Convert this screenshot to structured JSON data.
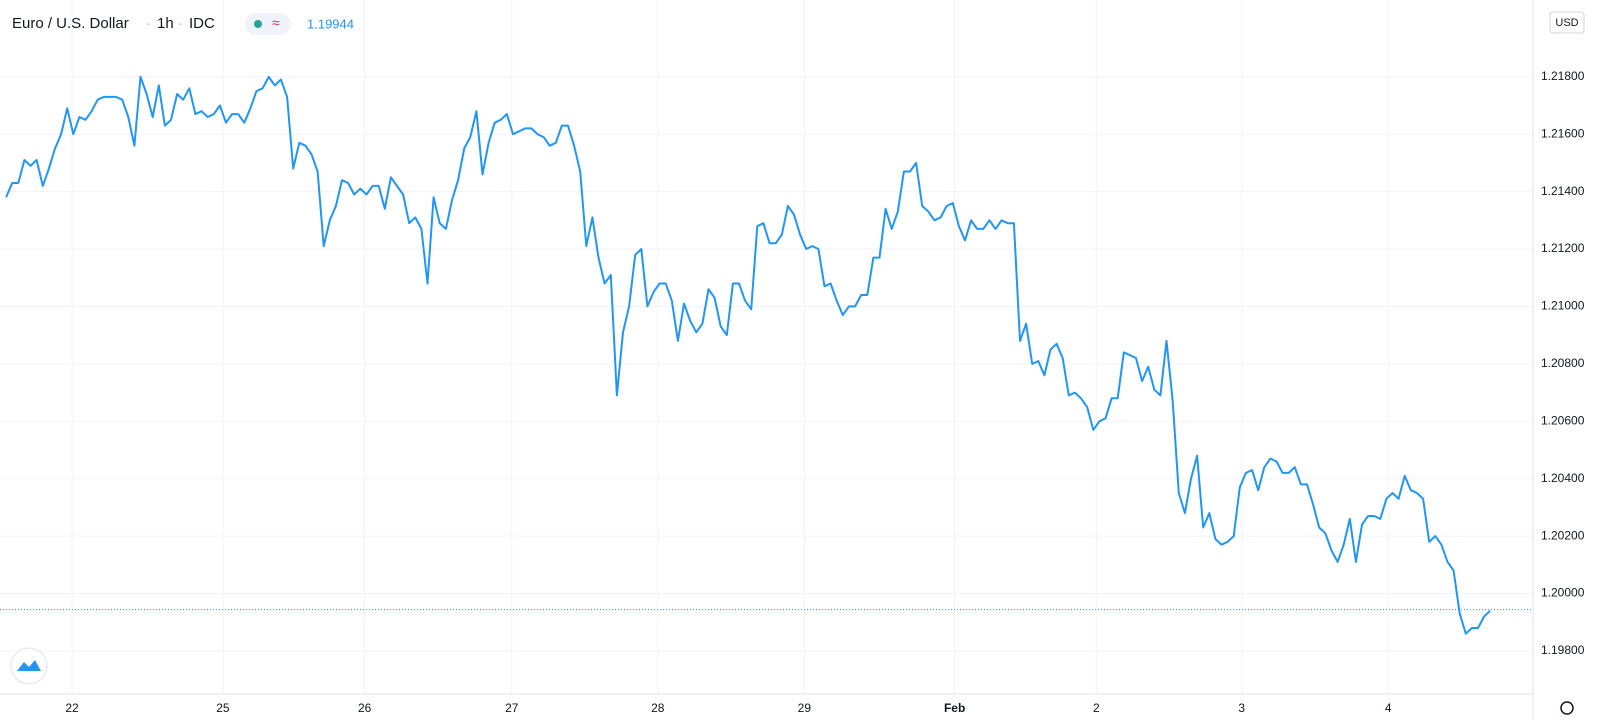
{
  "chart_data": {
    "type": "line",
    "title": "Euro / U.S. Dollar",
    "interval": "1h",
    "source": "IDC",
    "last_price": 1.19944,
    "currency": "USD",
    "series": [
      {
        "name": "EURUSD",
        "color": "#2196f3",
        "values": [
          1.2138,
          1.2143,
          1.2143,
          1.2151,
          1.2149,
          1.2151,
          1.2142,
          1.2148,
          1.2155,
          1.216,
          1.2169,
          1.216,
          1.2166,
          1.2165,
          1.2168,
          1.2172,
          1.2173,
          1.2173,
          1.2173,
          1.2172,
          1.2166,
          1.2156,
          1.218,
          1.2174,
          1.2166,
          1.2177,
          1.2163,
          1.2165,
          1.2174,
          1.2172,
          1.2176,
          1.2167,
          1.2168,
          1.2166,
          1.2167,
          1.217,
          1.2164,
          1.2167,
          1.2167,
          1.2164,
          1.2169,
          1.2175,
          1.2176,
          1.218,
          1.2177,
          1.2179,
          1.2173,
          1.2148,
          1.2157,
          1.2156,
          1.2153,
          1.2147,
          1.2121,
          1.213,
          1.2135,
          1.2144,
          1.2143,
          1.2139,
          1.2141,
          1.2139,
          1.2142,
          1.2142,
          1.2134,
          1.2145,
          1.2142,
          1.2139,
          1.2129,
          1.2131,
          1.2127,
          1.2108,
          1.2138,
          1.2129,
          1.2127,
          1.2137,
          1.2144,
          1.2155,
          1.2159,
          1.2168,
          1.2146,
          1.2157,
          1.2164,
          1.2165,
          1.2167,
          1.216,
          1.2161,
          1.2162,
          1.2162,
          1.216,
          1.2159,
          1.2156,
          1.2157,
          1.2163,
          1.2163,
          1.2156,
          1.2147,
          1.2121,
          1.2131,
          1.2117,
          1.2108,
          1.2111,
          1.2069,
          1.2091,
          1.21,
          1.2118,
          1.212,
          1.21,
          1.2105,
          1.2108,
          1.2108,
          1.2102,
          1.2088,
          1.2101,
          1.2095,
          1.2091,
          1.2094,
          1.2106,
          1.2103,
          1.2093,
          1.209,
          1.2108,
          1.2108,
          1.2102,
          1.2099,
          1.2128,
          1.2129,
          1.2122,
          1.2122,
          1.2125,
          1.2135,
          1.2132,
          1.2125,
          1.212,
          1.2121,
          1.212,
          1.2107,
          1.2108,
          1.2102,
          1.2097,
          1.21,
          1.21,
          1.2104,
          1.2104,
          1.2117,
          1.2117,
          1.2134,
          1.2127,
          1.2133,
          1.2147,
          1.2147,
          1.215,
          1.2135,
          1.2133,
          1.213,
          1.2131,
          1.2135,
          1.2136,
          1.2128,
          1.2123,
          1.213,
          1.2127,
          1.2127,
          1.213,
          1.2127,
          1.213,
          1.2129,
          1.2129,
          1.2088,
          1.2094,
          1.208,
          1.2081,
          1.2076,
          1.2085,
          1.2087,
          1.2082,
          1.2069,
          1.207,
          1.2068,
          1.2065,
          1.2057,
          1.206,
          1.2061,
          1.2068,
          1.2068,
          1.2084,
          1.2083,
          1.2082,
          1.2074,
          1.2079,
          1.2071,
          1.2069,
          1.2088,
          1.2067,
          1.2035,
          1.2028,
          1.204,
          1.2048,
          1.2023,
          1.2028,
          1.2019,
          1.2017,
          1.2018,
          1.202,
          1.2037,
          1.2042,
          1.2043,
          1.2036,
          1.2044,
          1.2047,
          1.2046,
          1.2042,
          1.2042,
          1.2044,
          1.2038,
          1.2038,
          1.2031,
          1.2023,
          1.2021,
          1.2015,
          1.2011,
          1.2017,
          1.2026,
          1.2011,
          1.2024,
          1.2027,
          1.2027,
          1.2026,
          1.2033,
          1.2035,
          1.2033,
          1.2041,
          1.2036,
          1.2035,
          1.2033,
          1.2018,
          1.202,
          1.2017,
          1.2011,
          1.2008,
          1.1993,
          1.1986,
          1.1988,
          1.1988,
          1.1992,
          1.1994
        ]
      }
    ],
    "xlim": [
      -1,
      250
    ],
    "xticks": [
      {
        "value": 10.8,
        "label": "22"
      },
      {
        "value": 35.5,
        "label": "25"
      },
      {
        "value": 58.7,
        "label": "26"
      },
      {
        "value": 82.8,
        "label": "27"
      },
      {
        "value": 106.7,
        "label": "28"
      },
      {
        "value": 130.7,
        "label": "29"
      },
      {
        "value": 155.3,
        "label": "Feb"
      },
      {
        "value": 178.5,
        "label": "2"
      },
      {
        "value": 202.3,
        "label": "3"
      },
      {
        "value": 226.3,
        "label": "4"
      }
    ],
    "ylim": [
      1.1965,
      1.2205
    ],
    "yticks": [
      {
        "value": 1.198,
        "label": "1.19800"
      },
      {
        "value": 1.2,
        "label": "1.20000"
      },
      {
        "value": 1.202,
        "label": "1.20200"
      },
      {
        "value": 1.204,
        "label": "1.20400"
      },
      {
        "value": 1.206,
        "label": "1.20600"
      },
      {
        "value": 1.208,
        "label": "1.20800"
      },
      {
        "value": 1.21,
        "label": "1.21000"
      },
      {
        "value": 1.212,
        "label": "1.21200"
      },
      {
        "value": 1.214,
        "label": "1.21400"
      },
      {
        "value": 1.216,
        "label": "1.21600"
      },
      {
        "value": 1.218,
        "label": "1.21800"
      }
    ],
    "grid": true
  }
}
